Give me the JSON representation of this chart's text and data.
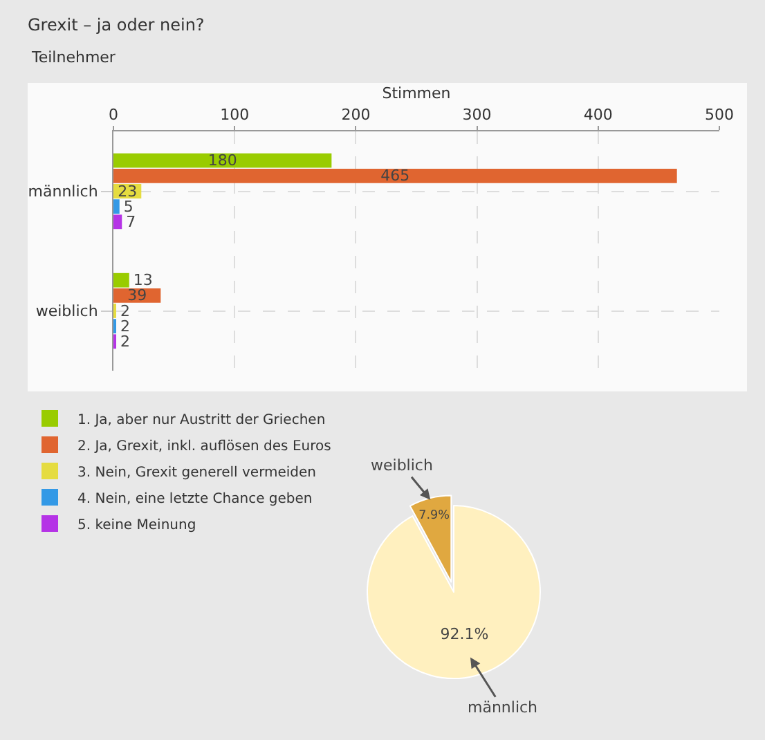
{
  "chart_data": [
    {
      "type": "bar",
      "orientation": "horizontal",
      "title": "Grexit – ja oder nein?",
      "subtitle": "Teilnehmer",
      "xlabel": "Stimmen",
      "categories": [
        "männlich",
        "weiblich"
      ],
      "series": [
        {
          "name": "1. Ja, aber nur Austritt der Griechen",
          "color": "#99cc00",
          "values": [
            180,
            13
          ]
        },
        {
          "name": "2. Ja, Grexit, inkl. auflösen des Euros",
          "color": "#e06530",
          "values": [
            465,
            39
          ]
        },
        {
          "name": "3. Nein, Grexit generell vermeiden",
          "color": "#e5dc40",
          "values": [
            23,
            2
          ]
        },
        {
          "name": "4. Nein, eine letzte Chance geben",
          "color": "#3399e6",
          "values": [
            5,
            2
          ]
        },
        {
          "name": "5. keine Meinung",
          "color": "#b533e6",
          "values": [
            7,
            2
          ]
        }
      ],
      "xlim": [
        0,
        500
      ],
      "xticks": [
        0,
        100,
        200,
        300,
        400,
        500
      ],
      "grid": true,
      "legend": "bottom",
      "data_labels": true
    },
    {
      "type": "pie",
      "categories": [
        "männlich",
        "weiblich"
      ],
      "values": [
        92.1,
        7.9
      ],
      "colors": [
        "#fff0bf",
        "#e0a840"
      ],
      "value_labels": [
        "92.1%",
        "7.9%"
      ]
    }
  ]
}
